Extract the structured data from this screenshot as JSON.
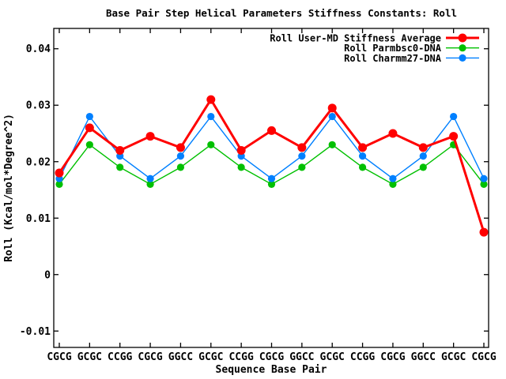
{
  "chart_data": {
    "type": "line",
    "title": "Base Pair Step Helical Parameters Stiffness Constants: Roll",
    "xlabel": "Sequence Base Pair",
    "ylabel": "Roll (Kcal/mol*Degree^2)",
    "categories": [
      "CGCG",
      "GCGC",
      "CCGG",
      "CGCG",
      "GGCC",
      "GCGC",
      "CCGG",
      "CGCG",
      "GGCC",
      "GCGC",
      "CCGG",
      "CGCG",
      "GGCC",
      "GCGC",
      "CGCG"
    ],
    "yticks": [
      0.04,
      0.03,
      0.02,
      0.01,
      0,
      -0.01
    ],
    "ytick_labels": [
      "0.04",
      "0.03",
      "0.02",
      "0.01",
      "0",
      "-0.01"
    ],
    "ylim": [
      -0.0129,
      0.0436
    ],
    "grid": false,
    "legend_position": "top-right-inside",
    "background_color": "#ffffff",
    "axis_color": "#000000",
    "series": [
      {
        "name": "Roll User-MD Stiffness Average",
        "color": "#ff0000",
        "line_width": 3,
        "marker": "filled-circle",
        "marker_radius": 5.5,
        "values": [
          0.018,
          0.026,
          0.022,
          0.0245,
          0.0225,
          0.031,
          0.022,
          0.0255,
          0.0225,
          0.0295,
          0.0225,
          0.025,
          0.0225,
          0.0245,
          0.0075
        ]
      },
      {
        "name": "Roll Parmbsc0-DNA",
        "color": "#00c000",
        "line_width": 1.4,
        "marker": "filled-circle",
        "marker_radius": 4.6,
        "values": [
          0.016,
          0.023,
          0.019,
          0.016,
          0.019,
          0.023,
          0.019,
          0.016,
          0.019,
          0.023,
          0.019,
          0.016,
          0.019,
          0.023,
          0.016
        ]
      },
      {
        "name": "Roll Charmm27-DNA",
        "color": "#0080ff",
        "line_width": 1.4,
        "marker": "filled-circle",
        "marker_radius": 4.6,
        "values": [
          0.017,
          0.028,
          0.021,
          0.017,
          0.021,
          0.028,
          0.021,
          0.017,
          0.021,
          0.028,
          0.021,
          0.017,
          0.021,
          0.028,
          0.017
        ]
      }
    ]
  }
}
